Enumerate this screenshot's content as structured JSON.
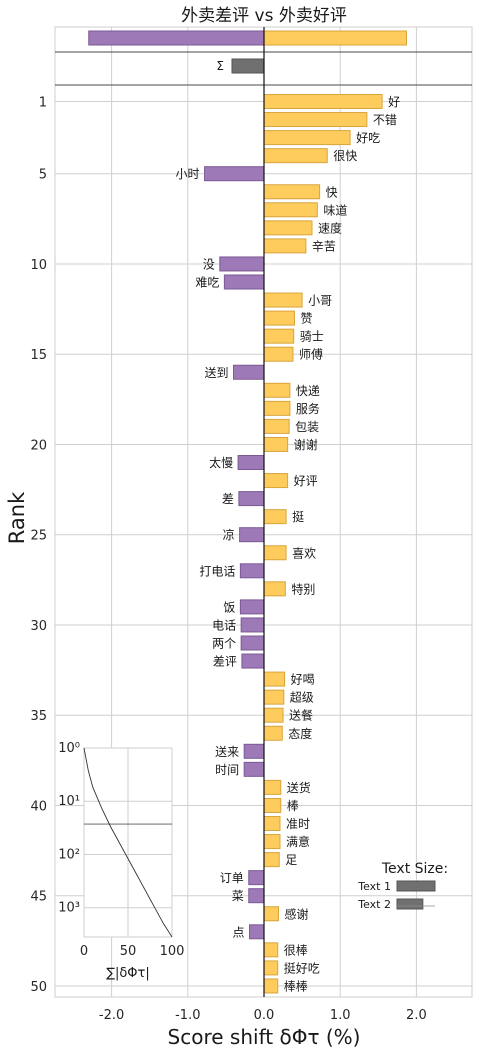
{
  "chart_data": {
    "type": "bar",
    "orientation": "horizontal",
    "title": "外卖差评 vs 外卖好评",
    "xlabel": "Score shift δΦτ (%)",
    "ylabel": "Rank",
    "xlim": [
      -2.75,
      2.75
    ],
    "ylim": [
      0.5,
      50.5
    ],
    "x_ticks": [
      -2.0,
      -1.0,
      0.0,
      1.0,
      2.0
    ],
    "x_tick_labels": [
      "-2.0",
      "-1.0",
      "0.0",
      "1.0",
      "2.0"
    ],
    "y_ticks": [
      1,
      5,
      10,
      15,
      20,
      25,
      30,
      35,
      40,
      45,
      50
    ],
    "grid": true,
    "colors": {
      "positive": "#fecb5d",
      "positive_edge": "#d9a53c",
      "negative": "#9e79b8",
      "negative_edge": "#7a5a94",
      "sum": "#707070"
    },
    "top_bars": {
      "negative": -2.3,
      "positive": 1.87
    },
    "sum_bar": {
      "label": "Σ",
      "value": -0.42
    },
    "words": [
      {
        "rank": 1,
        "word": "好",
        "value": 1.55
      },
      {
        "rank": 2,
        "word": "不错",
        "value": 1.35
      },
      {
        "rank": 3,
        "word": "好吃",
        "value": 1.13
      },
      {
        "rank": 4,
        "word": "很快",
        "value": 0.83
      },
      {
        "rank": 5,
        "word": "小时",
        "value": -0.78
      },
      {
        "rank": 6,
        "word": "快",
        "value": 0.73
      },
      {
        "rank": 7,
        "word": "味道",
        "value": 0.7
      },
      {
        "rank": 8,
        "word": "速度",
        "value": 0.63
      },
      {
        "rank": 9,
        "word": "辛苦",
        "value": 0.55
      },
      {
        "rank": 10,
        "word": "没",
        "value": -0.58
      },
      {
        "rank": 11,
        "word": "难吃",
        "value": -0.52
      },
      {
        "rank": 12,
        "word": "小哥",
        "value": 0.5
      },
      {
        "rank": 13,
        "word": "赞",
        "value": 0.4
      },
      {
        "rank": 14,
        "word": "骑士",
        "value": 0.39
      },
      {
        "rank": 15,
        "word": "师傅",
        "value": 0.38
      },
      {
        "rank": 16,
        "word": "送到",
        "value": -0.4
      },
      {
        "rank": 17,
        "word": "快递",
        "value": 0.34
      },
      {
        "rank": 18,
        "word": "服务",
        "value": 0.34
      },
      {
        "rank": 19,
        "word": "包装",
        "value": 0.33
      },
      {
        "rank": 20,
        "word": "谢谢",
        "value": 0.31
      },
      {
        "rank": 21,
        "word": "太慢",
        "value": -0.34
      },
      {
        "rank": 22,
        "word": "好评",
        "value": 0.31
      },
      {
        "rank": 23,
        "word": "差",
        "value": -0.33
      },
      {
        "rank": 24,
        "word": "挺",
        "value": 0.29
      },
      {
        "rank": 25,
        "word": "凉",
        "value": -0.32
      },
      {
        "rank": 26,
        "word": "喜欢",
        "value": 0.29
      },
      {
        "rank": 27,
        "word": "打电话",
        "value": -0.31
      },
      {
        "rank": 28,
        "word": "特别",
        "value": 0.28
      },
      {
        "rank": 29,
        "word": "饭",
        "value": -0.31
      },
      {
        "rank": 30,
        "word": "电话",
        "value": -0.3
      },
      {
        "rank": 31,
        "word": "两个",
        "value": -0.3
      },
      {
        "rank": 32,
        "word": "差评",
        "value": -0.29
      },
      {
        "rank": 33,
        "word": "好喝",
        "value": 0.27
      },
      {
        "rank": 34,
        "word": "超级",
        "value": 0.26
      },
      {
        "rank": 35,
        "word": "送餐",
        "value": 0.25
      },
      {
        "rank": 36,
        "word": "态度",
        "value": 0.24
      },
      {
        "rank": 37,
        "word": "送来",
        "value": -0.26
      },
      {
        "rank": 38,
        "word": "时间",
        "value": -0.26
      },
      {
        "rank": 39,
        "word": "送货",
        "value": 0.22
      },
      {
        "rank": 40,
        "word": "棒",
        "value": 0.22
      },
      {
        "rank": 41,
        "word": "准时",
        "value": 0.21
      },
      {
        "rank": 42,
        "word": "满意",
        "value": 0.21
      },
      {
        "rank": 43,
        "word": "足",
        "value": 0.2
      },
      {
        "rank": 44,
        "word": "订单",
        "value": -0.2
      },
      {
        "rank": 45,
        "word": "菜",
        "value": -0.2
      },
      {
        "rank": 46,
        "word": "感谢",
        "value": 0.19
      },
      {
        "rank": 47,
        "word": "点",
        "value": -0.19
      },
      {
        "rank": 48,
        "word": "很棒",
        "value": 0.18
      },
      {
        "rank": 49,
        "word": "挺好吃",
        "value": 0.18
      },
      {
        "rank": 50,
        "word": "棒棒",
        "value": 0.18
      }
    ],
    "inset": {
      "xlabel": "∑|δΦτ|",
      "x_ticks": [
        0,
        50,
        100
      ],
      "x_tick_labels": [
        "0",
        "50",
        "100"
      ],
      "y_tick_labels": [
        "10⁰",
        "10¹",
        "10²",
        "10³"
      ],
      "cumulative_curve": [
        [
          0,
          0
        ],
        [
          5,
          0.5
        ],
        [
          10,
          0.85
        ],
        [
          20,
          1.3
        ],
        [
          30,
          1.7
        ],
        [
          40,
          2.05
        ],
        [
          50,
          2.4
        ],
        [
          60,
          2.75
        ],
        [
          70,
          3.1
        ],
        [
          80,
          3.45
        ],
        [
          90,
          3.8
        ],
        [
          100,
          4.1
        ]
      ],
      "hline_rank_log": 1.65
    },
    "legend": {
      "title": "Text Size:",
      "entries": [
        {
          "name": "Text 1",
          "value": 1.0
        },
        {
          "name": "Text 2",
          "value": 0.68
        }
      ]
    }
  }
}
